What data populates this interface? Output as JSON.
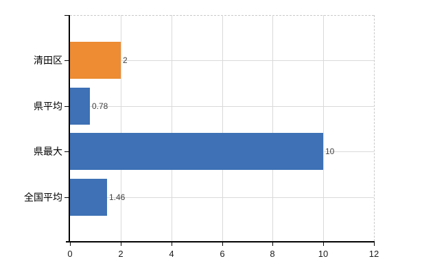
{
  "chart_data": {
    "type": "bar",
    "orientation": "horizontal",
    "categories": [
      "清田区",
      "県平均",
      "県最大",
      "全国平均"
    ],
    "values": [
      2,
      0.78,
      10,
      1.46
    ],
    "value_labels": [
      "2",
      "0.78",
      "10",
      "1.46"
    ],
    "bar_colors": [
      "#ED8C32",
      "#3E71B5",
      "#3E71B5",
      "#3E71B5"
    ],
    "x_tick_labels": [
      "0",
      "2",
      "4",
      "6",
      "8",
      "10",
      "12"
    ],
    "x_tick_values": [
      0,
      2,
      4,
      6,
      8,
      10,
      12
    ],
    "xlim": [
      0,
      12
    ],
    "grid": true,
    "gridline_color": "#D9D9D9",
    "axis_color": "#000000",
    "border_style": "dashed-top-right",
    "border_color": "#C8C8C8",
    "value_label_color": "#404040",
    "category_label_color": "#000000",
    "tick_label_color": "#1A1A1A",
    "background": "#FFFFFF",
    "legend": "none",
    "title": ""
  }
}
